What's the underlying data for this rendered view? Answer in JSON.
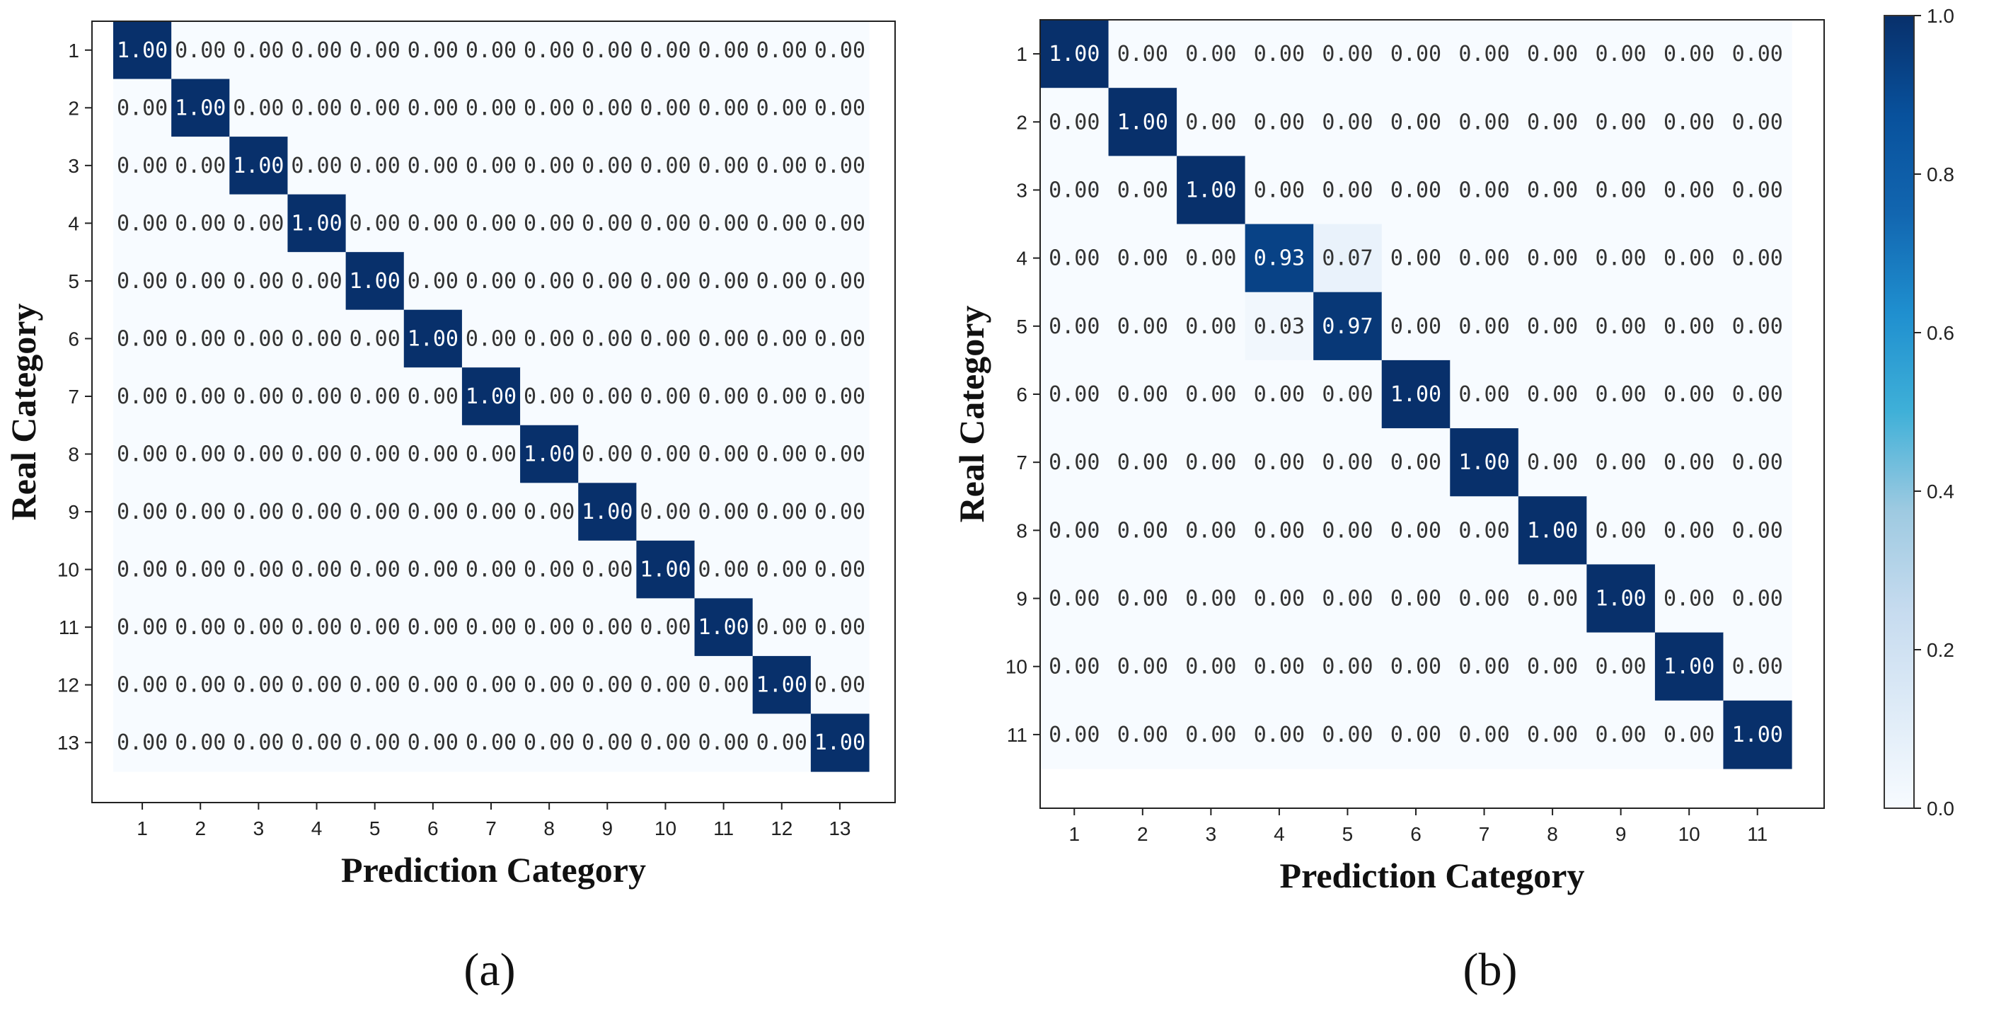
{
  "chart_data": [
    {
      "type": "heatmap",
      "panel_label": "(a)",
      "xlabel": "Prediction Category",
      "ylabel": "Real Category",
      "x_categories": [
        "1",
        "2",
        "3",
        "4",
        "5",
        "6",
        "7",
        "8",
        "9",
        "10",
        "11",
        "12",
        "13"
      ],
      "y_categories": [
        "1",
        "2",
        "3",
        "4",
        "5",
        "6",
        "7",
        "8",
        "9",
        "10",
        "11",
        "12",
        "13"
      ],
      "values": [
        [
          1.0,
          0.0,
          0.0,
          0.0,
          0.0,
          0.0,
          0.0,
          0.0,
          0.0,
          0.0,
          0.0,
          0.0,
          0.0
        ],
        [
          0.0,
          1.0,
          0.0,
          0.0,
          0.0,
          0.0,
          0.0,
          0.0,
          0.0,
          0.0,
          0.0,
          0.0,
          0.0
        ],
        [
          0.0,
          0.0,
          1.0,
          0.0,
          0.0,
          0.0,
          0.0,
          0.0,
          0.0,
          0.0,
          0.0,
          0.0,
          0.0
        ],
        [
          0.0,
          0.0,
          0.0,
          1.0,
          0.0,
          0.0,
          0.0,
          0.0,
          0.0,
          0.0,
          0.0,
          0.0,
          0.0
        ],
        [
          0.0,
          0.0,
          0.0,
          0.0,
          1.0,
          0.0,
          0.0,
          0.0,
          0.0,
          0.0,
          0.0,
          0.0,
          0.0
        ],
        [
          0.0,
          0.0,
          0.0,
          0.0,
          0.0,
          1.0,
          0.0,
          0.0,
          0.0,
          0.0,
          0.0,
          0.0,
          0.0
        ],
        [
          0.0,
          0.0,
          0.0,
          0.0,
          0.0,
          0.0,
          1.0,
          0.0,
          0.0,
          0.0,
          0.0,
          0.0,
          0.0
        ],
        [
          0.0,
          0.0,
          0.0,
          0.0,
          0.0,
          0.0,
          0.0,
          1.0,
          0.0,
          0.0,
          0.0,
          0.0,
          0.0
        ],
        [
          0.0,
          0.0,
          0.0,
          0.0,
          0.0,
          0.0,
          0.0,
          0.0,
          1.0,
          0.0,
          0.0,
          0.0,
          0.0
        ],
        [
          0.0,
          0.0,
          0.0,
          0.0,
          0.0,
          0.0,
          0.0,
          0.0,
          0.0,
          1.0,
          0.0,
          0.0,
          0.0
        ],
        [
          0.0,
          0.0,
          0.0,
          0.0,
          0.0,
          0.0,
          0.0,
          0.0,
          0.0,
          0.0,
          1.0,
          0.0,
          0.0
        ],
        [
          0.0,
          0.0,
          0.0,
          0.0,
          0.0,
          0.0,
          0.0,
          0.0,
          0.0,
          0.0,
          0.0,
          1.0,
          0.0
        ],
        [
          0.0,
          0.0,
          0.0,
          0.0,
          0.0,
          0.0,
          0.0,
          0.0,
          0.0,
          0.0,
          0.0,
          0.0,
          1.0
        ]
      ],
      "value_format": "0.00",
      "colormap": "Blues",
      "vmin": 0.0,
      "vmax": 1.0
    },
    {
      "type": "heatmap",
      "panel_label": "(b)",
      "xlabel": "Prediction Category",
      "ylabel": "Real Category",
      "x_categories": [
        "1",
        "2",
        "3",
        "4",
        "5",
        "6",
        "7",
        "8",
        "9",
        "10",
        "11"
      ],
      "y_categories": [
        "1",
        "2",
        "3",
        "4",
        "5",
        "6",
        "7",
        "8",
        "9",
        "10",
        "11"
      ],
      "values": [
        [
          1.0,
          0.0,
          0.0,
          0.0,
          0.0,
          0.0,
          0.0,
          0.0,
          0.0,
          0.0,
          0.0
        ],
        [
          0.0,
          1.0,
          0.0,
          0.0,
          0.0,
          0.0,
          0.0,
          0.0,
          0.0,
          0.0,
          0.0
        ],
        [
          0.0,
          0.0,
          1.0,
          0.0,
          0.0,
          0.0,
          0.0,
          0.0,
          0.0,
          0.0,
          0.0
        ],
        [
          0.0,
          0.0,
          0.0,
          0.93,
          0.07,
          0.0,
          0.0,
          0.0,
          0.0,
          0.0,
          0.0
        ],
        [
          0.0,
          0.0,
          0.0,
          0.03,
          0.97,
          0.0,
          0.0,
          0.0,
          0.0,
          0.0,
          0.0
        ],
        [
          0.0,
          0.0,
          0.0,
          0.0,
          0.0,
          1.0,
          0.0,
          0.0,
          0.0,
          0.0,
          0.0
        ],
        [
          0.0,
          0.0,
          0.0,
          0.0,
          0.0,
          0.0,
          1.0,
          0.0,
          0.0,
          0.0,
          0.0
        ],
        [
          0.0,
          0.0,
          0.0,
          0.0,
          0.0,
          0.0,
          0.0,
          1.0,
          0.0,
          0.0,
          0.0
        ],
        [
          0.0,
          0.0,
          0.0,
          0.0,
          0.0,
          0.0,
          0.0,
          0.0,
          1.0,
          0.0,
          0.0
        ],
        [
          0.0,
          0.0,
          0.0,
          0.0,
          0.0,
          0.0,
          0.0,
          0.0,
          0.0,
          1.0,
          0.0
        ],
        [
          0.0,
          0.0,
          0.0,
          0.0,
          0.0,
          0.0,
          0.0,
          0.0,
          0.0,
          0.0,
          1.0
        ]
      ],
      "value_format": "0.00",
      "colormap": "Blues",
      "vmin": 0.0,
      "vmax": 1.0,
      "colorbar": {
        "ticks": [
          0.0,
          0.2,
          0.4,
          0.6,
          0.8,
          1.0
        ],
        "tick_labels": [
          "0.0",
          "0.2",
          "0.4",
          "0.6",
          "0.8",
          "1.0"
        ]
      }
    }
  ],
  "colors": {
    "low": "#f7fbff",
    "high": "#08306b",
    "text_dark": "#333333",
    "text_light": "#ffffff"
  }
}
